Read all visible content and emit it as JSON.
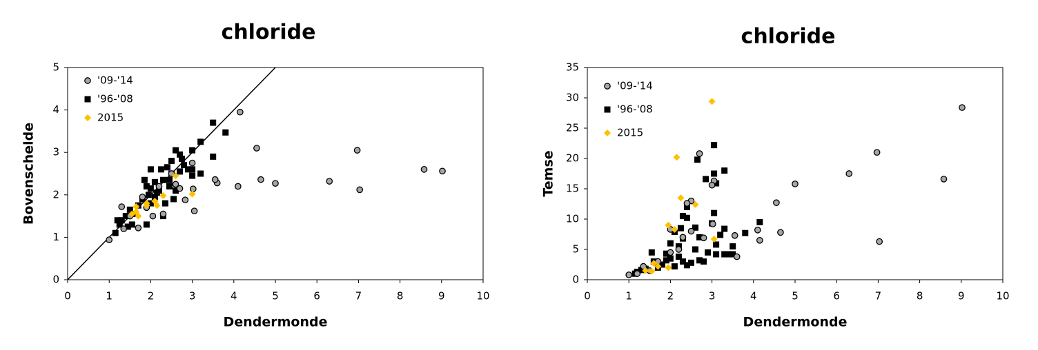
{
  "chart_data": [
    {
      "type": "scatter",
      "title": "chloride",
      "x_label": "Dendermonde",
      "y_label": "Bovenschelde",
      "xlim": [
        0,
        10
      ],
      "xticks": [
        0,
        1,
        2,
        3,
        4,
        5,
        6,
        7,
        8,
        9,
        10
      ],
      "ylim": [
        0,
        5
      ],
      "yticks": [
        0,
        1,
        2,
        3,
        4,
        5
      ],
      "grid": false,
      "legend": "top-left",
      "identity_line": {
        "x": [
          0,
          5
        ],
        "y": [
          0,
          5
        ]
      },
      "series": [
        {
          "name": "'09-'14",
          "color": "#a6a6a6",
          "marker": "circle",
          "x": [
            4.15,
            4.55,
            6.97,
            8.58,
            9.02,
            4.65,
            5.0,
            6.3,
            7.03,
            4.1,
            3.6,
            3.55,
            3.05,
            2.83,
            3.02,
            2.7,
            1.0,
            1.3,
            1.35,
            1.7,
            2.05,
            2.3,
            1.8,
            3.0,
            2.5,
            2.2,
            1.5,
            1.9,
            2.6
          ],
          "values": [
            3.95,
            3.1,
            3.05,
            2.6,
            2.56,
            2.36,
            2.27,
            2.32,
            2.12,
            2.2,
            2.28,
            2.36,
            1.62,
            1.88,
            2.14,
            2.15,
            0.94,
            1.72,
            1.2,
            1.22,
            1.5,
            1.55,
            1.95,
            2.75,
            2.5,
            2.2,
            1.5,
            1.7,
            2.25
          ]
        },
        {
          "name": "'96-'08",
          "color": "#000000",
          "marker": "square",
          "x": [
            3.5,
            3.8,
            3.2,
            3.5,
            2.6,
            3.0,
            2.75,
            2.5,
            2.7,
            2.0,
            2.25,
            2.4,
            3.0,
            3.2,
            3.0,
            2.8,
            1.85,
            2.1,
            2.3,
            2.0,
            1.9,
            2.2,
            2.45,
            2.6,
            2.35,
            2.1,
            1.8,
            1.7,
            1.5,
            1.4,
            1.3,
            1.2,
            1.15,
            1.25,
            1.55,
            1.9,
            1.6,
            2.3,
            1.45,
            2.0,
            2.5,
            2.55,
            1.95,
            2.15,
            2.7,
            2.9,
            2.45
          ],
          "values": [
            3.7,
            3.47,
            3.25,
            2.9,
            3.05,
            3.05,
            2.85,
            2.8,
            2.95,
            2.6,
            2.6,
            2.65,
            2.6,
            2.5,
            2.45,
            2.7,
            2.35,
            2.3,
            2.35,
            2.15,
            2.2,
            2.1,
            2.2,
            2.1,
            1.8,
            1.95,
            1.9,
            1.75,
            1.65,
            1.5,
            1.4,
            1.4,
            1.1,
            1.3,
            1.3,
            1.3,
            1.55,
            1.5,
            1.25,
            1.8,
            2.5,
            1.9,
            2.0,
            2.05,
            2.55,
            2.6,
            2.35
          ]
        },
        {
          "name": "2015",
          "color": "#ffc000",
          "marker": "diamond",
          "x": [
            2.6,
            3.0,
            2.3,
            1.9,
            1.65,
            1.55,
            1.7,
            1.9,
            2.15,
            2.1,
            1.65
          ],
          "values": [
            2.45,
            2.02,
            1.98,
            1.8,
            1.72,
            1.55,
            1.5,
            1.75,
            1.75,
            1.85,
            1.6
          ]
        }
      ]
    },
    {
      "type": "scatter",
      "title": "chloride",
      "x_label": "Dendermonde",
      "y_label": "Temse",
      "xlim": [
        0,
        10
      ],
      "xticks": [
        0,
        1,
        2,
        3,
        4,
        5,
        6,
        7,
        8,
        9,
        10
      ],
      "ylim": [
        0,
        35
      ],
      "yticks": [
        0,
        5,
        10,
        15,
        20,
        25,
        30,
        35
      ],
      "grid": false,
      "legend": "top-left",
      "series": [
        {
          "name": "'09-'14",
          "color": "#a6a6a6",
          "marker": "circle",
          "x": [
            9.02,
            6.97,
            8.58,
            6.3,
            5.0,
            4.55,
            4.1,
            4.15,
            4.65,
            7.03,
            2.7,
            3.05,
            3.0,
            2.5,
            2.4,
            3.6,
            3.55,
            2.5,
            2.0,
            2.3,
            1.0,
            1.35,
            1.7,
            2.0,
            1.5,
            2.8,
            3.02,
            2.2,
            1.2
          ],
          "values": [
            28.4,
            21.0,
            16.6,
            17.5,
            15.8,
            12.7,
            8.2,
            6.5,
            7.8,
            6.3,
            20.8,
            16.3,
            15.6,
            13.0,
            12.6,
            3.8,
            7.3,
            8.0,
            8.3,
            7.0,
            0.8,
            2.2,
            3.0,
            4.5,
            1.5,
            6.9,
            9.2,
            5.0,
            1.0
          ]
        },
        {
          "name": "'96-'08",
          "color": "#000000",
          "marker": "square",
          "x": [
            3.05,
            2.65,
            3.3,
            3.05,
            2.85,
            3.1,
            2.4,
            2.4,
            2.3,
            3.05,
            4.15,
            2.25,
            3.0,
            3.3,
            3.8,
            2.6,
            2.1,
            3.2,
            2.7,
            2.3,
            2.0,
            3.1,
            3.5,
            1.55,
            2.2,
            2.6,
            2.9,
            3.1,
            3.3,
            3.5,
            1.9,
            2.0,
            2.3,
            2.5,
            2.7,
            1.6,
            1.8,
            1.4,
            1.2,
            1.3,
            1.15,
            1.7,
            2.1,
            2.4,
            2.8,
            3.4,
            2.2,
            1.9
          ],
          "values": [
            22.2,
            19.8,
            18.0,
            17.5,
            16.6,
            15.9,
            12.0,
            10.2,
            10.5,
            11.0,
            9.5,
            8.5,
            9.3,
            8.4,
            7.7,
            8.6,
            7.9,
            7.4,
            7.0,
            6.8,
            6.0,
            5.8,
            5.5,
            4.5,
            5.5,
            5.0,
            4.5,
            4.2,
            4.2,
            4.2,
            4.3,
            3.5,
            3.0,
            2.8,
            3.2,
            3.0,
            2.5,
            1.8,
            1.3,
            1.6,
            1.0,
            2.0,
            2.2,
            2.4,
            3.0,
            4.2,
            3.8,
            3.2
          ]
        },
        {
          "name": "2015",
          "color": "#ffc000",
          "marker": "diamond",
          "x": [
            3.0,
            2.15,
            2.25,
            2.6,
            1.95,
            2.1,
            3.05,
            1.6,
            1.7,
            1.95,
            1.4,
            1.55
          ],
          "values": [
            29.4,
            20.2,
            13.5,
            12.4,
            9.0,
            8.3,
            6.7,
            2.7,
            2.2,
            2.0,
            1.5,
            1.4
          ]
        }
      ]
    }
  ]
}
